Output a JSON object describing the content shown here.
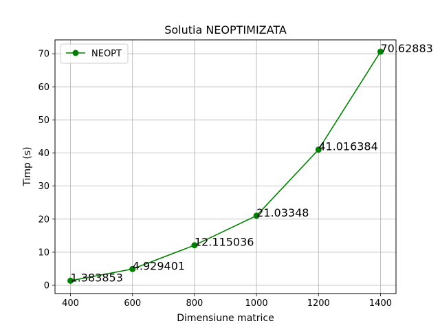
{
  "chart_data": {
    "type": "line",
    "title": "Solutia NEOPTIMIZATA",
    "xlabel": "Dimensiune matrice",
    "ylabel": "Timp (s)",
    "xlim": [
      350,
      1450
    ],
    "ylim": [
      -2.5,
      74.2
    ],
    "xticks": [
      400,
      600,
      800,
      1000,
      1200,
      1400
    ],
    "yticks": [
      0,
      10,
      20,
      30,
      40,
      50,
      60,
      70
    ],
    "grid": true,
    "legend_position": "upper-left",
    "series": [
      {
        "name": "NEOPT",
        "color": "#008000",
        "marker": "circle",
        "x": [
          400,
          600,
          800,
          1000,
          1200,
          1400
        ],
        "y": [
          1.383853,
          4.929401,
          12.115036,
          21.03348,
          41.016384,
          70.62883
        ],
        "labels": [
          "1.383853",
          "4.929401",
          "12.115036",
          "21.03348",
          "41.016384",
          "70.62883"
        ]
      }
    ]
  }
}
